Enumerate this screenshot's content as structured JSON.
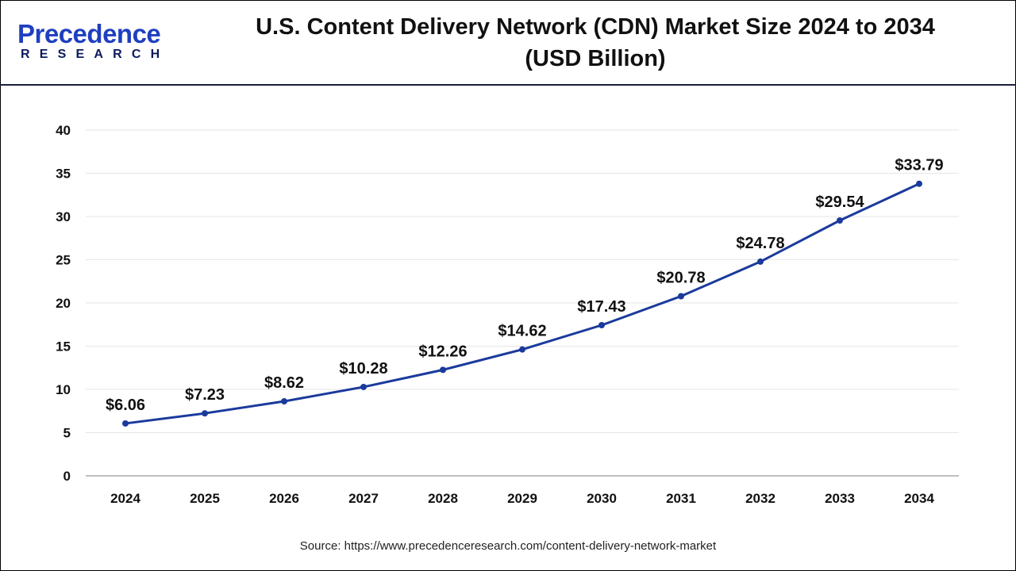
{
  "header": {
    "logo_text": "Precedence",
    "logo_subtext": "RESEARCH",
    "title_line1": "U.S. Content Delivery Network (CDN) Market Size 2024 to 2034",
    "title_line2": "(USD Billion)"
  },
  "source": "Source: https://www.precedenceresearch.com/content-delivery-network-market",
  "chart_data": {
    "type": "line",
    "title": "U.S. Content Delivery Network (CDN) Market Size 2024 to 2034 (USD Billion)",
    "categories": [
      "2024",
      "2025",
      "2026",
      "2027",
      "2028",
      "2029",
      "2030",
      "2031",
      "2032",
      "2033",
      "2034"
    ],
    "values": [
      6.06,
      7.23,
      8.62,
      10.28,
      12.26,
      14.62,
      17.43,
      20.78,
      24.78,
      29.54,
      33.79
    ],
    "data_labels": [
      "$6.06",
      "$7.23",
      "$8.62",
      "$10.28",
      "$12.26",
      "$14.62",
      "$17.43",
      "$20.78",
      "$24.78",
      "$29.54",
      "$33.79"
    ],
    "ylim": [
      0,
      40
    ],
    "yticks": [
      0,
      5,
      10,
      15,
      20,
      25,
      30,
      35,
      40
    ],
    "grid": true,
    "line_color": "#1a3a9c",
    "xlabel": "",
    "ylabel": ""
  }
}
